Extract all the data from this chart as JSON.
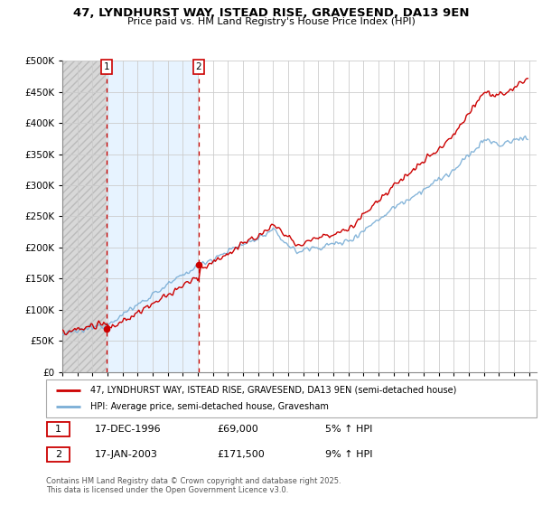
{
  "title": "47, LYNDHURST WAY, ISTEAD RISE, GRAVESEND, DA13 9EN",
  "subtitle": "Price paid vs. HM Land Registry's House Price Index (HPI)",
  "legend_line1": "47, LYNDHURST WAY, ISTEAD RISE, GRAVESEND, DA13 9EN (semi-detached house)",
  "legend_line2": "HPI: Average price, semi-detached house, Gravesham",
  "transaction1_date": "17-DEC-1996",
  "transaction1_price": "£69,000",
  "transaction1_hpi": "5% ↑ HPI",
  "transaction2_date": "17-JAN-2003",
  "transaction2_price": "£171,500",
  "transaction2_hpi": "9% ↑ HPI",
  "footer": "Contains HM Land Registry data © Crown copyright and database right 2025.\nThis data is licensed under the Open Government Licence v3.0.",
  "red_color": "#cc0000",
  "blue_color": "#7aaed6",
  "transaction1_x": 1996.96,
  "transaction1_y": 69000,
  "transaction2_x": 2003.04,
  "transaction2_y": 171500,
  "vline1_x": 1996.96,
  "vline2_x": 2003.04,
  "ylim": [
    0,
    500000
  ],
  "xlim": [
    1994.0,
    2025.5
  ],
  "yticks": [
    0,
    50000,
    100000,
    150000,
    200000,
    250000,
    300000,
    350000,
    400000,
    450000,
    500000
  ],
  "hatch_color": "#d8d8d8",
  "light_blue_bg": "#ddeeff",
  "background_color": "#ffffff",
  "grid_color": "#cccccc"
}
